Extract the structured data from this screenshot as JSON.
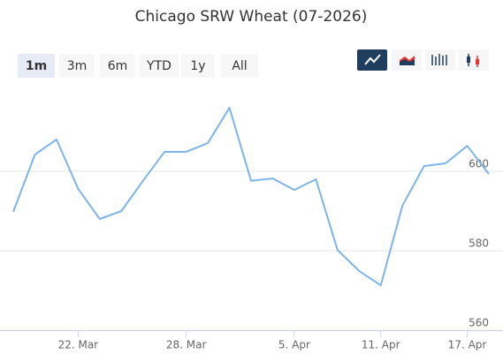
{
  "chart_data": {
    "type": "line",
    "title": "Chicago SRW Wheat (07-2026)",
    "categories": [
      null,
      null,
      null,
      "22. Mar",
      null,
      null,
      null,
      null,
      "28. Mar",
      null,
      null,
      null,
      null,
      "5. Apr",
      null,
      null,
      null,
      "11. Apr",
      null,
      null,
      null,
      "17. Apr",
      null
    ],
    "series": [
      {
        "color": "#7cb5ec",
        "values": [
          589.8,
          604.2,
          608.0,
          595.6,
          588.0,
          590.0,
          597.6,
          604.9,
          604.9,
          607.1,
          616.0,
          597.6,
          598.2,
          595.3,
          598.0,
          580.2,
          574.9,
          571.3,
          591.3,
          601.3,
          602.0,
          606.4,
          599.3
        ]
      }
    ],
    "ylim": [
      560,
      620
    ],
    "yticks": [
      560,
      580,
      600
    ],
    "grid": true
  },
  "range_selector": {
    "buttons": [
      "1m",
      "3m",
      "6m",
      "YTD",
      "1y",
      "All"
    ],
    "selected": 0
  }
}
